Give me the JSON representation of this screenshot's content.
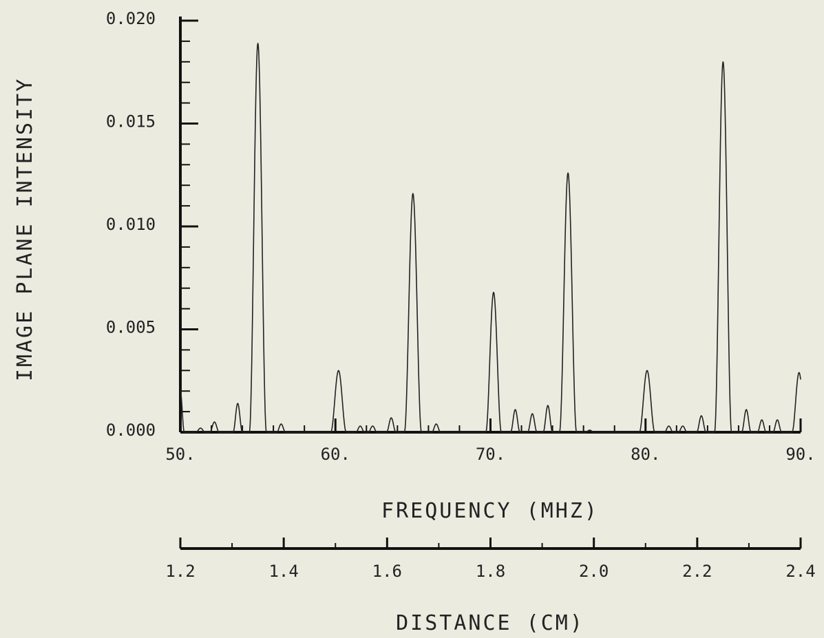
{
  "chart_data": {
    "type": "line",
    "title": "",
    "xlabel": "FREQUENCY (MHZ)",
    "ylabel": "IMAGE PLANE INTENSITY",
    "xlim": [
      50,
      90
    ],
    "ylim": [
      0,
      0.02
    ],
    "x_ticks": [
      50,
      60,
      70,
      80,
      90
    ],
    "x_tick_labels": [
      "50.",
      "60.",
      "70.",
      "80.",
      "90."
    ],
    "y_ticks": [
      0,
      0.005,
      0.01,
      0.015,
      0.02
    ],
    "y_tick_labels": [
      "0.000",
      "0.005",
      "0.010",
      "0.015",
      "0.020"
    ],
    "secondary_x_axis": {
      "label": "DISTANCE (CM)",
      "range": [
        1.2,
        2.4
      ],
      "ticks": [
        1.2,
        1.4,
        1.6,
        1.8,
        2.0,
        2.2,
        2.4
      ],
      "tick_labels": [
        "1.2",
        "1.4",
        "1.6",
        "1.8",
        "2.0",
        "2.2",
        "2.4"
      ]
    },
    "grid": false,
    "line_color": "#222222",
    "series": [
      {
        "peaks": [
          {
            "x": 50.0,
            "y": 0.002,
            "w": 0.25
          },
          {
            "x": 51.3,
            "y": 0.0002,
            "w": 0.3
          },
          {
            "x": 52.2,
            "y": 0.0005,
            "w": 0.3
          },
          {
            "x": 53.7,
            "y": 0.0014,
            "w": 0.3
          },
          {
            "x": 55.0,
            "y": 0.0189,
            "w": 0.55
          },
          {
            "x": 56.5,
            "y": 0.0004,
            "w": 0.28
          },
          {
            "x": 60.2,
            "y": 0.003,
            "w": 0.5
          },
          {
            "x": 61.6,
            "y": 0.0003,
            "w": 0.28
          },
          {
            "x": 62.4,
            "y": 0.0003,
            "w": 0.28
          },
          {
            "x": 63.6,
            "y": 0.0007,
            "w": 0.3
          },
          {
            "x": 65.0,
            "y": 0.0116,
            "w": 0.55
          },
          {
            "x": 66.5,
            "y": 0.0004,
            "w": 0.28
          },
          {
            "x": 70.2,
            "y": 0.0068,
            "w": 0.5
          },
          {
            "x": 71.6,
            "y": 0.0011,
            "w": 0.3
          },
          {
            "x": 72.7,
            "y": 0.0009,
            "w": 0.3
          },
          {
            "x": 73.7,
            "y": 0.0013,
            "w": 0.3
          },
          {
            "x": 75.0,
            "y": 0.0126,
            "w": 0.55
          },
          {
            "x": 76.4,
            "y": 0.0001,
            "w": 0.28
          },
          {
            "x": 80.1,
            "y": 0.003,
            "w": 0.5
          },
          {
            "x": 81.5,
            "y": 0.0003,
            "w": 0.28
          },
          {
            "x": 82.4,
            "y": 0.0003,
            "w": 0.28
          },
          {
            "x": 83.6,
            "y": 0.0008,
            "w": 0.3
          },
          {
            "x": 85.0,
            "y": 0.018,
            "w": 0.55
          },
          {
            "x": 86.5,
            "y": 0.0011,
            "w": 0.3
          },
          {
            "x": 87.5,
            "y": 0.0006,
            "w": 0.28
          },
          {
            "x": 88.5,
            "y": 0.0006,
            "w": 0.28
          },
          {
            "x": 89.9,
            "y": 0.0029,
            "w": 0.45
          }
        ]
      }
    ]
  }
}
